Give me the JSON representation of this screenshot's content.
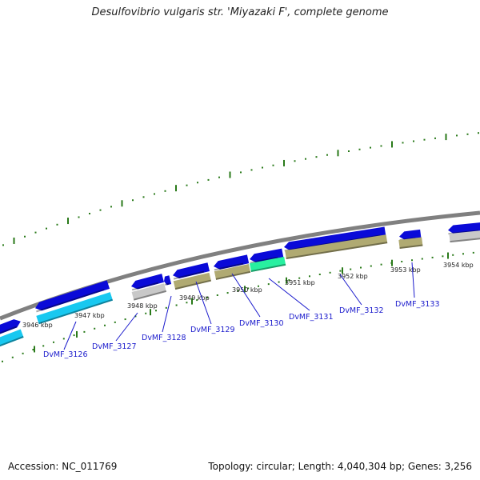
{
  "title": "Desulfovibrio vulgaris str. 'Miyazaki F', complete genome",
  "footer": {
    "accession": "Accession: NC_011769",
    "summary": "Topology: circular; Length: 4,040,304 bp; Genes: 3,256"
  },
  "colors": {
    "backbone": "#808080",
    "forward_gene": "#0a0ad8",
    "cds_tan": "#b0aa72",
    "cds_gray": "#c8c8c8",
    "cds_cyan": "#18c8f0",
    "cds_green": "#28f0a0",
    "tick": "#2a7a1a",
    "label": "#1a1acc"
  },
  "kbp_labels": [
    "3946 kbp",
    "3947 kbp",
    "3948 kbp",
    "3949 kbp",
    "3950 kbp",
    "3951 kbp",
    "3952 kbp",
    "3953 kbp",
    "3954 kbp"
  ],
  "gene_labels": [
    "DvMF_3126",
    "DvMF_3127",
    "DvMF_3128",
    "DvMF_3129",
    "DvMF_3130",
    "DvMF_3131",
    "DvMF_3132",
    "DvMF_3133"
  ]
}
